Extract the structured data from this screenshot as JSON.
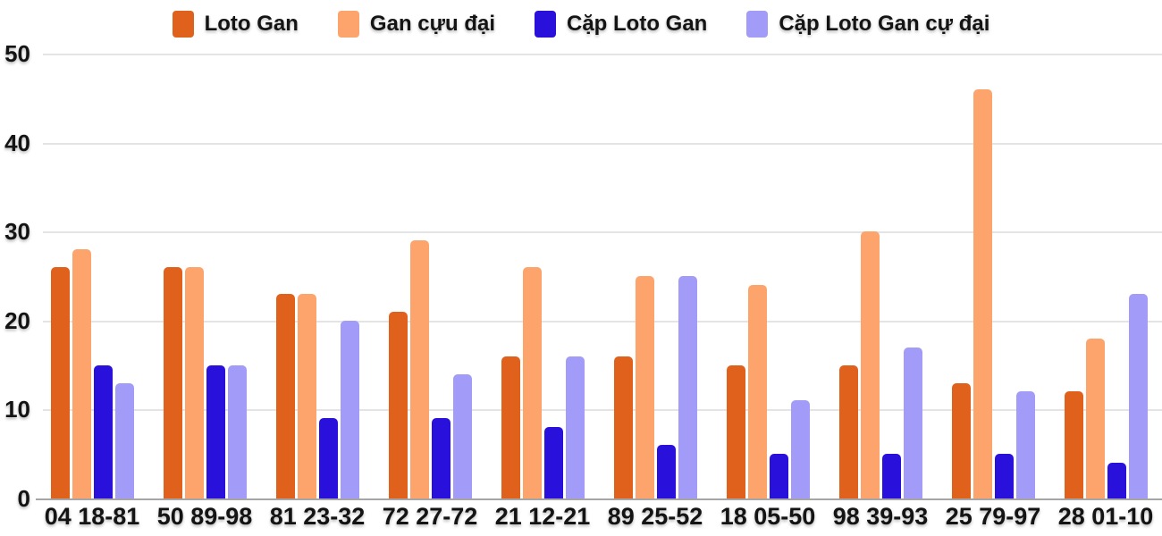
{
  "chart_data": {
    "type": "bar",
    "title": "",
    "xlabel": "",
    "ylabel": "",
    "ylim": [
      0,
      50
    ],
    "yticks": [
      0,
      10,
      20,
      30,
      40,
      50
    ],
    "grid": true,
    "legend_position": "top",
    "categories": [
      "04 18-81",
      "50 89-98",
      "81 23-32",
      "72 27-72",
      "21 12-21",
      "89 25-52",
      "18 05-50",
      "98 39-93",
      "25 79-97",
      "28 01-10"
    ],
    "series": [
      {
        "name": "Loto Gan",
        "color": "#E0611C",
        "values": [
          26,
          26,
          23,
          21,
          16,
          16,
          15,
          15,
          13,
          12
        ]
      },
      {
        "name": "Gan cựu đại",
        "color": "#FDA36C",
        "values": [
          28,
          26,
          23,
          29,
          26,
          25,
          24,
          30,
          46,
          18
        ]
      },
      {
        "name": "Cặp Loto Gan",
        "color": "#2A10DB",
        "values": [
          15,
          15,
          9,
          9,
          8,
          6,
          5,
          5,
          5,
          4
        ]
      },
      {
        "name": "Cặp Loto Gan cự đại",
        "color": "#A29BF8",
        "values": [
          13,
          15,
          20,
          14,
          16,
          25,
          11,
          17,
          12,
          23
        ]
      }
    ],
    "colors": {
      "gridline": "#E4E4E4",
      "axis_line": "#A6A6A6",
      "text": "#141414",
      "background": "#FFFFFF"
    }
  }
}
